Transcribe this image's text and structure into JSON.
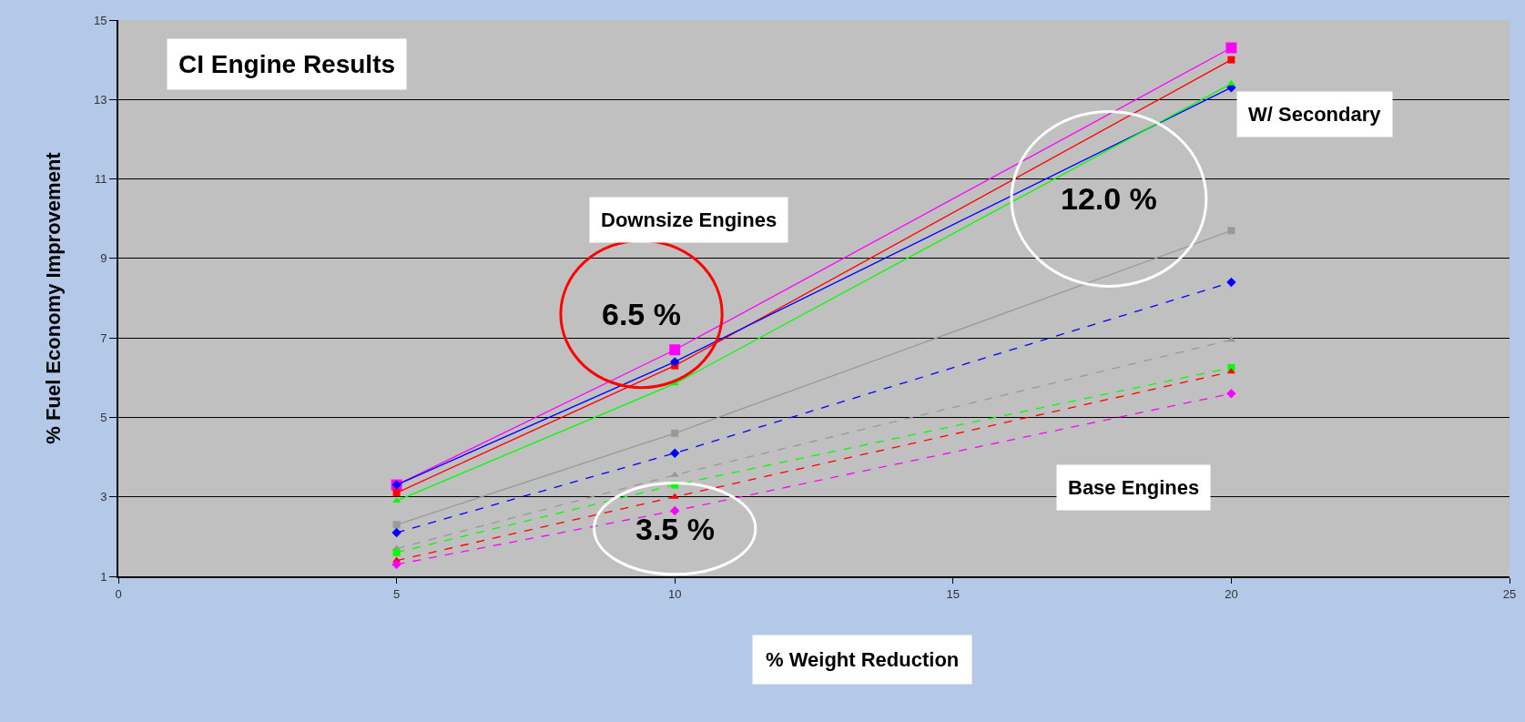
{
  "chart_data": {
    "type": "line",
    "title": "CI Engine Results",
    "xlabel": "% Weight Reduction",
    "ylabel": "% Fuel Economy Improvement",
    "x": [
      5,
      10,
      20
    ],
    "series": [
      {
        "color": "#ff00ff",
        "values": [
          3.3,
          6.7,
          14.3
        ],
        "marker": "square",
        "line_style": "solid"
      },
      {
        "color": "#ff0000",
        "values": [
          3.1,
          6.3,
          14.0
        ],
        "marker": "square",
        "line_style": "solid"
      },
      {
        "color": "#0000ff",
        "values": [
          3.3,
          6.4,
          13.3
        ],
        "marker": "diamond",
        "line_style": "solid"
      },
      {
        "color": "#00ff00",
        "values": [
          2.9,
          5.85,
          13.4
        ],
        "marker": "triangle",
        "line_style": "solid"
      },
      {
        "color": "#999999",
        "values": [
          2.3,
          4.6,
          9.7
        ],
        "marker": "square",
        "line_style": "solid"
      },
      {
        "color": "#0000ff",
        "values": [
          2.1,
          4.1,
          8.4
        ],
        "marker": "diamond",
        "line_style": "dashed"
      },
      {
        "color": "#999999",
        "values": [
          1.7,
          3.55,
          6.95
        ],
        "marker": "triangle",
        "line_style": "dashed"
      },
      {
        "color": "#00ff00",
        "values": [
          1.6,
          3.3,
          6.25
        ],
        "marker": "square",
        "line_style": "dashed"
      },
      {
        "color": "#ff0000",
        "values": [
          1.4,
          3.0,
          6.15
        ],
        "marker": "triangle",
        "line_style": "dashed"
      },
      {
        "color": "#ff00ff",
        "values": [
          1.3,
          2.65,
          5.6
        ],
        "marker": "diamond",
        "line_style": "dashed"
      }
    ],
    "xlim": [
      0,
      25
    ],
    "xticks": [
      0,
      5,
      10,
      15,
      20,
      25
    ],
    "ylim": [
      1,
      15
    ],
    "yticks": [
      1,
      3,
      5,
      7,
      9,
      11,
      13,
      15
    ],
    "grid": "y",
    "annotations": [
      "6.5 %",
      "12.0 %",
      "3.5 %",
      "Downsize Engines",
      "W/ Secondary",
      "Base Engines"
    ]
  }
}
